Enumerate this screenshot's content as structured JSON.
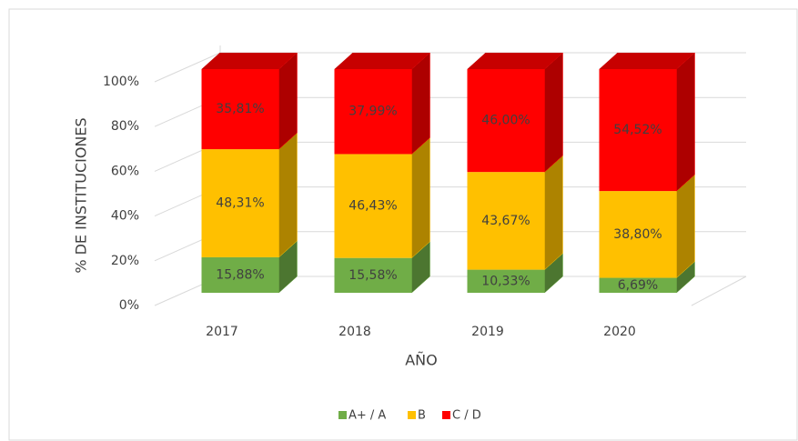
{
  "chart_data": {
    "type": "bar3d_stacked",
    "x_label": "AÑO",
    "y_label": "% DE INSTITUCIONES",
    "categories": [
      "2017",
      "2018",
      "2019",
      "2020"
    ],
    "series": [
      {
        "name": "A+ / A",
        "color": "#70ad47",
        "values": [
          15.88,
          15.58,
          10.33,
          6.69
        ],
        "value_labels": [
          "15,88%",
          "15,58%",
          "10,33%",
          "6,69%"
        ]
      },
      {
        "name": "B",
        "color": "#ffc000",
        "values": [
          48.31,
          46.43,
          43.67,
          38.8
        ],
        "value_labels": [
          "48,31%",
          "46,43%",
          "43,67%",
          "38,80%"
        ]
      },
      {
        "name": "C / D",
        "color": "#ff0000",
        "values": [
          35.81,
          37.99,
          46.0,
          54.52
        ],
        "value_labels": [
          "35,81%",
          "37,99%",
          "46,00%",
          "54,52%"
        ]
      }
    ],
    "ylim": [
      0,
      100
    ],
    "yticks": [
      {
        "value": 0,
        "label": "0%"
      },
      {
        "value": 20,
        "label": "20%"
      },
      {
        "value": 40,
        "label": "40%"
      },
      {
        "value": 60,
        "label": "60%"
      },
      {
        "value": 80,
        "label": "80%"
      },
      {
        "value": 100,
        "label": "100%"
      }
    ],
    "grid": true,
    "legend": "bottom"
  }
}
